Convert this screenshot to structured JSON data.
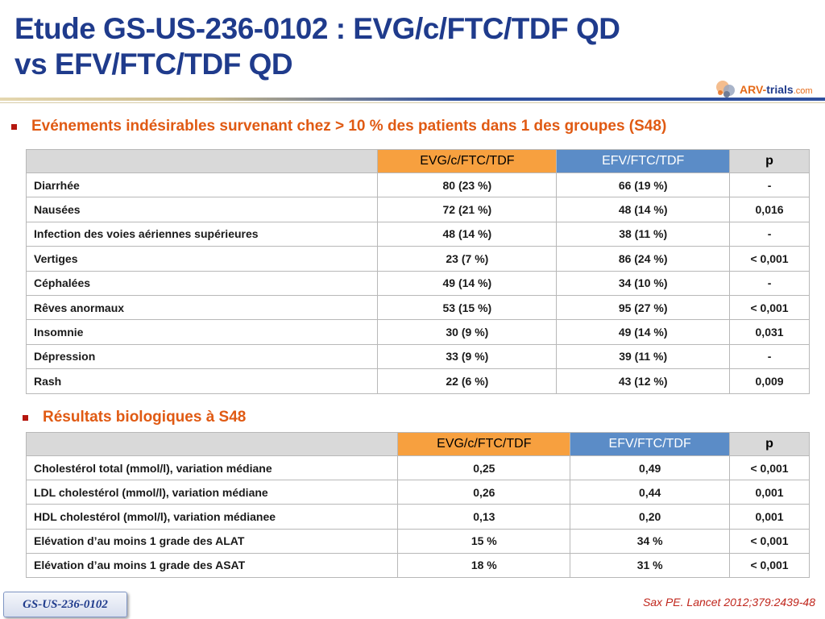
{
  "title": {
    "line1": "Etude GS-US-236-0102 : EVG/c/FTC/TDF QD",
    "line2": "vs EFV/FTC/TDF QD"
  },
  "logo": {
    "arv": "ARV",
    "dash": "-",
    "trials": "trials",
    "com": ".com"
  },
  "colors": {
    "title": "#1f3b8c",
    "bullet": "#e05a13",
    "evg_header": "#f7a03f",
    "efv_header": "#5b8cc7",
    "reference": "#c0261c"
  },
  "section1": {
    "heading": "Evénements indésirables survenant chez > 10 % des patients dans 1 des groupes (S48)",
    "columns": [
      "",
      "EVG/c/FTC/TDF",
      "EFV/FTC/TDF",
      "p"
    ],
    "rows": [
      [
        "Diarrhée",
        "80 (23 %)",
        "66 (19 %)",
        "-"
      ],
      [
        "Nausées",
        "72 (21 %)",
        "48 (14 %)",
        "0,016"
      ],
      [
        "Infection des voies aériennes supérieures",
        "48 (14 %)",
        "38 (11 %)",
        "-"
      ],
      [
        "Vertiges",
        "23 (7 %)",
        "86 (24 %)",
        "< 0,001"
      ],
      [
        "Céphalées",
        "49 (14 %)",
        "34 (10 %)",
        "-"
      ],
      [
        "Rêves anormaux",
        "53 (15 %)",
        "95 (27 %)",
        "< 0,001"
      ],
      [
        "Insomnie",
        "30 (9 %)",
        "49 (14 %)",
        "0,031"
      ],
      [
        "Dépression",
        "33 (9 %)",
        "39 (11 %)",
        "-"
      ],
      [
        "Rash",
        "22 (6 %)",
        "43 (12 %)",
        "0,009"
      ]
    ]
  },
  "section2": {
    "heading": "Résultats biologiques à S48",
    "columns": [
      "",
      "EVG/c/FTC/TDF",
      "EFV/FTC/TDF",
      "p"
    ],
    "rows": [
      [
        "Cholestérol total (mmol/l), variation médiane",
        "0,25",
        "0,49",
        "< 0,001"
      ],
      [
        "LDL cholestérol (mmol/l), variation médiane",
        "0,26",
        "0,44",
        "0,001"
      ],
      [
        "HDL cholestérol (mmol/l), variation médianee",
        "0,13",
        "0,20",
        "0,001"
      ],
      [
        "Elévation d’au moins 1 grade des ALAT",
        "15 %",
        "34 %",
        "< 0,001"
      ],
      [
        "Elévation d’au moins 1 grade des ASAT",
        "18 %",
        "31 %",
        "< 0,001"
      ]
    ]
  },
  "footer": {
    "study_tag": "GS-US-236-0102",
    "reference": "Sax PE. Lancet 2012;379:2439-48"
  }
}
